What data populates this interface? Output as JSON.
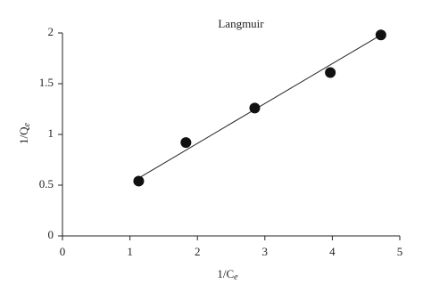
{
  "chart_data": {
    "type": "scatter",
    "title": "Langmuir",
    "x_label": {
      "text": "1/C",
      "subscript": "e"
    },
    "y_label": {
      "text": "1/Q",
      "subscript": "e"
    },
    "x": [
      1.13,
      1.83,
      2.85,
      3.97,
      4.72
    ],
    "values": [
      0.54,
      0.92,
      1.26,
      1.61,
      1.98
    ],
    "color": "#111111",
    "fit_line": {
      "x": [
        1.13,
        4.72
      ],
      "y": [
        0.57,
        1.98
      ],
      "color": "#222222"
    },
    "xlim": [
      0,
      5
    ],
    "xticks": [
      0,
      1,
      2,
      3,
      4,
      5
    ],
    "ylim": [
      0,
      2
    ],
    "yticks": [
      0,
      0.5,
      1,
      1.5,
      2
    ]
  }
}
